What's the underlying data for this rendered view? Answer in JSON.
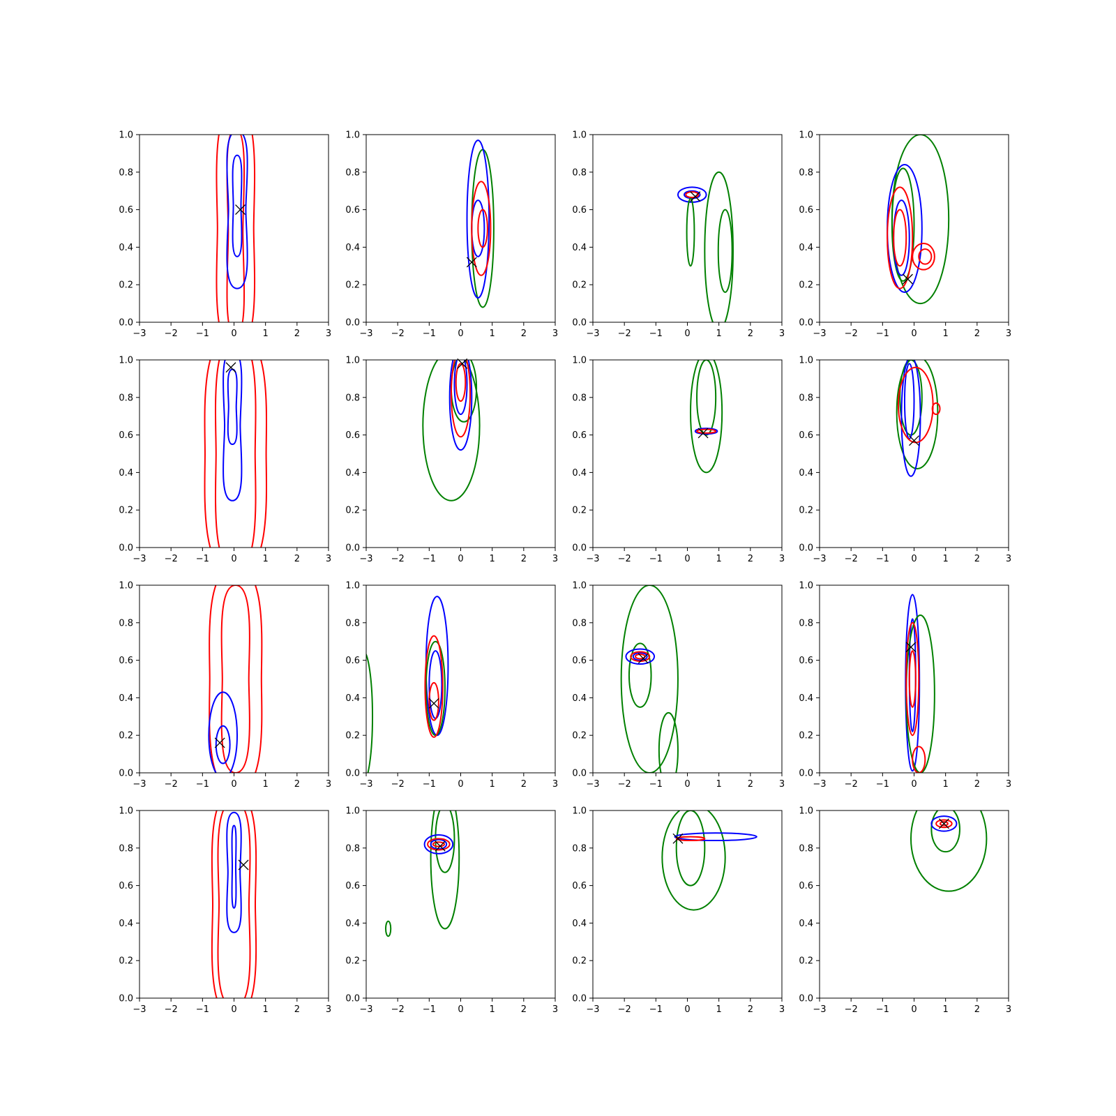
{
  "figure": {
    "rows": 4,
    "cols": 4
  },
  "colors": {
    "blue": "#0000ff",
    "red": "#ff0000",
    "green": "#008000",
    "marker": "#000000"
  },
  "chart_data": {
    "type": "contour",
    "xlim": [
      -3,
      3
    ],
    "ylim": [
      0,
      1
    ],
    "xticks": [
      -3,
      -2,
      -1,
      0,
      1,
      2,
      3
    ],
    "yticks": [
      0.0,
      0.2,
      0.4,
      0.6,
      0.8,
      1.0
    ],
    "grid": false,
    "panels": [
      {
        "row": 0,
        "col": 0,
        "marker": [
          0.2,
          0.6
        ],
        "contours": [
          {
            "color": "red",
            "cx": 0.05,
            "cy": 0.5,
            "rx": 0.8,
            "ry": 0.65,
            "w": 0.15
          },
          {
            "color": "red",
            "cx": 0.05,
            "cy": 0.48,
            "rx": 0.42,
            "ry": 0.55,
            "w": 0.15
          },
          {
            "color": "blue",
            "cx": 0.1,
            "cy": 0.6,
            "rx": 0.5,
            "ry": 0.42,
            "w": 0.2
          },
          {
            "color": "blue",
            "cx": 0.1,
            "cy": 0.62,
            "rx": 0.22,
            "ry": 0.27,
            "w": 0.2
          }
        ]
      },
      {
        "row": 0,
        "col": 1,
        "marker": [
          0.35,
          0.32
        ],
        "contours": [
          {
            "color": "green",
            "cx": 0.7,
            "cy": 0.5,
            "rx": 0.35,
            "ry": 0.42
          },
          {
            "color": "blue",
            "cx": 0.55,
            "cy": 0.55,
            "rx": 0.35,
            "ry": 0.42
          },
          {
            "color": "blue",
            "cx": 0.55,
            "cy": 0.5,
            "rx": 0.2,
            "ry": 0.15
          },
          {
            "color": "red",
            "cx": 0.65,
            "cy": 0.5,
            "rx": 0.3,
            "ry": 0.25
          },
          {
            "color": "red",
            "cx": 0.7,
            "cy": 0.5,
            "rx": 0.15,
            "ry": 0.1
          }
        ]
      },
      {
        "row": 0,
        "col": 2,
        "marker": [
          0.25,
          0.67
        ],
        "contours": [
          {
            "color": "blue",
            "cx": 0.15,
            "cy": 0.68,
            "rx": 0.45,
            "ry": 0.04
          },
          {
            "color": "blue",
            "cx": 0.15,
            "cy": 0.68,
            "rx": 0.25,
            "ry": 0.02
          },
          {
            "color": "red",
            "cx": 0.15,
            "cy": 0.68,
            "rx": 0.2,
            "ry": 0.015
          },
          {
            "color": "green",
            "cx": 1.0,
            "cy": 0.38,
            "rx": 0.45,
            "ry": 0.42
          },
          {
            "color": "green",
            "cx": 1.2,
            "cy": 0.38,
            "rx": 0.22,
            "ry": 0.22
          },
          {
            "color": "green",
            "cx": 0.1,
            "cy": 0.48,
            "rx": 0.12,
            "ry": 0.18
          }
        ]
      },
      {
        "row": 0,
        "col": 3,
        "marker": [
          -0.2,
          0.23
        ],
        "contours": [
          {
            "color": "green",
            "cx": 0.2,
            "cy": 0.55,
            "rx": 0.9,
            "ry": 0.45
          },
          {
            "color": "green",
            "cx": -0.35,
            "cy": 0.52,
            "rx": 0.35,
            "ry": 0.3
          },
          {
            "color": "blue",
            "cx": -0.3,
            "cy": 0.5,
            "rx": 0.55,
            "ry": 0.34
          },
          {
            "color": "blue",
            "cx": -0.4,
            "cy": 0.45,
            "rx": 0.25,
            "ry": 0.2
          },
          {
            "color": "red",
            "cx": -0.45,
            "cy": 0.45,
            "rx": 0.4,
            "ry": 0.27
          },
          {
            "color": "red",
            "cx": -0.45,
            "cy": 0.45,
            "rx": 0.2,
            "ry": 0.15
          },
          {
            "color": "red",
            "cx": 0.3,
            "cy": 0.35,
            "rx": 0.35,
            "ry": 0.07
          },
          {
            "color": "red",
            "cx": 0.35,
            "cy": 0.35,
            "rx": 0.2,
            "ry": 0.04
          }
        ]
      },
      {
        "row": 1,
        "col": 0,
        "marker": [
          -0.1,
          0.96
        ],
        "contours": [
          {
            "color": "red",
            "cx": 0.05,
            "cy": 0.5,
            "rx": 1.15,
            "ry": 0.65,
            "w": 0.12
          },
          {
            "color": "red",
            "cx": 0.05,
            "cy": 0.5,
            "rx": 0.8,
            "ry": 0.62,
            "w": 0.12
          },
          {
            "color": "blue",
            "cx": -0.05,
            "cy": 0.65,
            "rx": 0.45,
            "ry": 0.4,
            "w": 0.2
          },
          {
            "color": "blue",
            "cx": -0.05,
            "cy": 0.75,
            "rx": 0.22,
            "ry": 0.2,
            "w": 0.2
          }
        ]
      },
      {
        "row": 1,
        "col": 1,
        "marker": [
          0.05,
          0.98
        ],
        "contours": [
          {
            "color": "green",
            "cx": -0.3,
            "cy": 0.65,
            "rx": 0.9,
            "ry": 0.4
          },
          {
            "color": "green",
            "cx": 0.1,
            "cy": 0.85,
            "rx": 0.4,
            "ry": 0.18
          },
          {
            "color": "blue",
            "cx": 0.0,
            "cy": 0.8,
            "rx": 0.35,
            "ry": 0.28
          },
          {
            "color": "blue",
            "cx": 0.0,
            "cy": 0.87,
            "rx": 0.2,
            "ry": 0.16
          },
          {
            "color": "red",
            "cx": 0.0,
            "cy": 0.82,
            "rx": 0.3,
            "ry": 0.23
          },
          {
            "color": "red",
            "cx": 0.0,
            "cy": 0.88,
            "rx": 0.15,
            "ry": 0.1
          }
        ]
      },
      {
        "row": 1,
        "col": 2,
        "marker": [
          0.5,
          0.61
        ],
        "contours": [
          {
            "color": "green",
            "cx": 0.6,
            "cy": 0.72,
            "rx": 0.5,
            "ry": 0.32
          },
          {
            "color": "green",
            "cx": 0.6,
            "cy": 0.8,
            "rx": 0.3,
            "ry": 0.2
          },
          {
            "color": "blue",
            "cx": 0.6,
            "cy": 0.62,
            "rx": 0.35,
            "ry": 0.015
          },
          {
            "color": "red",
            "cx": 0.6,
            "cy": 0.62,
            "rx": 0.3,
            "ry": 0.01
          }
        ]
      },
      {
        "row": 1,
        "col": 3,
        "marker": [
          0.0,
          0.57
        ],
        "contours": [
          {
            "color": "green",
            "cx": 0.1,
            "cy": 0.72,
            "rx": 0.65,
            "ry": 0.3
          },
          {
            "color": "green",
            "cx": -0.1,
            "cy": 0.8,
            "rx": 0.35,
            "ry": 0.2
          },
          {
            "color": "blue",
            "cx": -0.1,
            "cy": 0.7,
            "rx": 0.3,
            "ry": 0.32
          },
          {
            "color": "blue",
            "cx": -0.15,
            "cy": 0.78,
            "rx": 0.15,
            "ry": 0.2
          },
          {
            "color": "red",
            "cx": 0.05,
            "cy": 0.76,
            "rx": 0.55,
            "ry": 0.2
          },
          {
            "color": "red",
            "cx": 0.7,
            "cy": 0.74,
            "rx": 0.12,
            "ry": 0.03
          }
        ]
      },
      {
        "row": 2,
        "col": 0,
        "marker": [
          -0.45,
          0.16
        ],
        "contours": [
          {
            "color": "red",
            "cx": 0.05,
            "cy": 0.5,
            "rx": 1.0,
            "ry": 0.6,
            "w": 0.12
          },
          {
            "color": "red",
            "cx": 0.05,
            "cy": 0.5,
            "rx": 0.6,
            "ry": 0.5,
            "w": 0.12
          },
          {
            "color": "blue",
            "cx": -0.35,
            "cy": 0.2,
            "rx": 0.45,
            "ry": 0.23
          },
          {
            "color": "blue",
            "cx": -0.35,
            "cy": 0.15,
            "rx": 0.22,
            "ry": 0.1
          }
        ]
      },
      {
        "row": 2,
        "col": 1,
        "marker": [
          -0.85,
          0.37
        ],
        "contours": [
          {
            "color": "blue",
            "cx": -0.75,
            "cy": 0.57,
            "rx": 0.35,
            "ry": 0.37
          },
          {
            "color": "blue",
            "cx": -0.8,
            "cy": 0.47,
            "rx": 0.2,
            "ry": 0.18
          },
          {
            "color": "green",
            "cx": -0.8,
            "cy": 0.45,
            "rx": 0.3,
            "ry": 0.25
          },
          {
            "color": "red",
            "cx": -0.85,
            "cy": 0.46,
            "rx": 0.28,
            "ry": 0.27
          },
          {
            "color": "red",
            "cx": -0.85,
            "cy": 0.38,
            "rx": 0.15,
            "ry": 0.1
          },
          {
            "color": "green",
            "cx": -3.1,
            "cy": 0.3,
            "rx": 0.3,
            "ry": 0.35
          }
        ]
      },
      {
        "row": 2,
        "col": 2,
        "marker": [
          -1.4,
          0.61
        ],
        "contours": [
          {
            "color": "green",
            "cx": -1.2,
            "cy": 0.5,
            "rx": 0.9,
            "ry": 0.5
          },
          {
            "color": "green",
            "cx": -1.5,
            "cy": 0.52,
            "rx": 0.35,
            "ry": 0.17
          },
          {
            "color": "green",
            "cx": -0.6,
            "cy": 0.12,
            "rx": 0.3,
            "ry": 0.2
          },
          {
            "color": "blue",
            "cx": -1.5,
            "cy": 0.62,
            "rx": 0.45,
            "ry": 0.04
          },
          {
            "color": "blue",
            "cx": -1.5,
            "cy": 0.62,
            "rx": 0.22,
            "ry": 0.02
          },
          {
            "color": "red",
            "cx": -1.5,
            "cy": 0.62,
            "rx": 0.3,
            "ry": 0.025
          },
          {
            "color": "red",
            "cx": -1.5,
            "cy": 0.62,
            "rx": 0.15,
            "ry": 0.012
          }
        ]
      },
      {
        "row": 2,
        "col": 3,
        "marker": [
          -0.1,
          0.67
        ],
        "contours": [
          {
            "color": "blue",
            "cx": -0.05,
            "cy": 0.48,
            "rx": 0.22,
            "ry": 0.47
          },
          {
            "color": "blue",
            "cx": -0.05,
            "cy": 0.52,
            "rx": 0.1,
            "ry": 0.3
          },
          {
            "color": "green",
            "cx": 0.2,
            "cy": 0.42,
            "rx": 0.45,
            "ry": 0.42
          },
          {
            "color": "red",
            "cx": -0.05,
            "cy": 0.5,
            "rx": 0.2,
            "ry": 0.3
          },
          {
            "color": "red",
            "cx": -0.05,
            "cy": 0.5,
            "rx": 0.1,
            "ry": 0.15
          },
          {
            "color": "red",
            "cx": 0.15,
            "cy": 0.07,
            "rx": 0.2,
            "ry": 0.07
          }
        ]
      },
      {
        "row": 3,
        "col": 0,
        "marker": [
          0.3,
          0.71
        ],
        "contours": [
          {
            "color": "red",
            "cx": 0.0,
            "cy": 0.5,
            "rx": 0.9,
            "ry": 0.6,
            "w": 0.15
          },
          {
            "color": "red",
            "cx": 0.0,
            "cy": 0.5,
            "rx": 0.7,
            "ry": 0.55,
            "w": 0.15
          },
          {
            "color": "blue",
            "cx": 0.0,
            "cy": 0.67,
            "rx": 0.35,
            "ry": 0.32,
            "w": 0.2
          },
          {
            "color": "blue",
            "cx": 0.0,
            "cy": 0.7,
            "rx": 0.1,
            "ry": 0.22,
            "w": 0.2
          }
        ]
      },
      {
        "row": 3,
        "col": 1,
        "marker": [
          -0.65,
          0.81
        ],
        "contours": [
          {
            "color": "green",
            "cx": -0.5,
            "cy": 0.75,
            "rx": 0.45,
            "ry": 0.38
          },
          {
            "color": "green",
            "cx": -0.5,
            "cy": 0.85,
            "rx": 0.3,
            "ry": 0.18
          },
          {
            "color": "green",
            "cx": -2.3,
            "cy": 0.37,
            "rx": 0.08,
            "ry": 0.04
          },
          {
            "color": "blue",
            "cx": -0.7,
            "cy": 0.82,
            "rx": 0.45,
            "ry": 0.05
          },
          {
            "color": "blue",
            "cx": -0.7,
            "cy": 0.82,
            "rx": 0.25,
            "ry": 0.025
          },
          {
            "color": "red",
            "cx": -0.7,
            "cy": 0.82,
            "rx": 0.35,
            "ry": 0.03
          },
          {
            "color": "red",
            "cx": -0.7,
            "cy": 0.82,
            "rx": 0.18,
            "ry": 0.012
          }
        ]
      },
      {
        "row": 3,
        "col": 2,
        "marker": [
          -0.3,
          0.85
        ],
        "contours": [
          {
            "color": "green",
            "cx": 0.2,
            "cy": 0.75,
            "rx": 1.0,
            "ry": 0.28
          },
          {
            "color": "green",
            "cx": 0.1,
            "cy": 0.8,
            "rx": 0.45,
            "ry": 0.2
          },
          {
            "color": "blue",
            "cx": 0.9,
            "cy": 0.86,
            "rx": 1.3,
            "ry": 0.02
          },
          {
            "color": "red",
            "cx": 0.1,
            "cy": 0.85,
            "rx": 0.45,
            "ry": 0.01
          }
        ]
      },
      {
        "row": 3,
        "col": 3,
        "marker": [
          0.95,
          0.93
        ],
        "contours": [
          {
            "color": "green",
            "cx": 1.1,
            "cy": 0.85,
            "rx": 1.2,
            "ry": 0.28
          },
          {
            "color": "green",
            "cx": 1.0,
            "cy": 0.9,
            "rx": 0.45,
            "ry": 0.12
          },
          {
            "color": "blue",
            "cx": 0.95,
            "cy": 0.93,
            "rx": 0.4,
            "ry": 0.04
          },
          {
            "color": "red",
            "cx": 0.95,
            "cy": 0.93,
            "rx": 0.25,
            "ry": 0.02
          },
          {
            "color": "red",
            "cx": 0.95,
            "cy": 0.93,
            "rx": 0.12,
            "ry": 0.01
          }
        ]
      }
    ]
  }
}
